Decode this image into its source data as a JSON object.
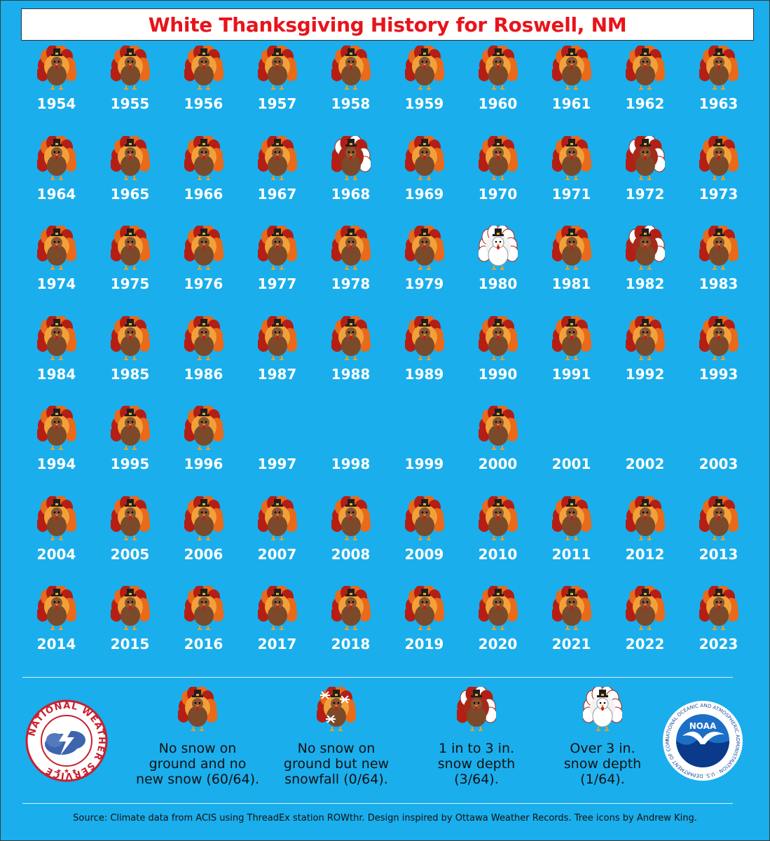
{
  "title": "White Thanksgiving History for Roswell, NM",
  "colors": {
    "background": "#1aaeec",
    "title_text": "#e8141b",
    "turkey_body": "#7a4a2a",
    "turkey_feather_orange": "#e86a1a",
    "turkey_feather_red": "#b51e14",
    "snow_white": "#ffffff"
  },
  "icons": {
    "none": "turkey-brown-icon",
    "new_snow": "turkey-snowflake-icon",
    "light_depth": "turkey-white-feathers-icon",
    "heavy_depth": "turkey-white-body-icon"
  },
  "rows": [
    [
      {
        "year": "1954",
        "c": "none"
      },
      {
        "year": "1955",
        "c": "none"
      },
      {
        "year": "1956",
        "c": "none"
      },
      {
        "year": "1957",
        "c": "none"
      },
      {
        "year": "1958",
        "c": "none"
      },
      {
        "year": "1959",
        "c": "none"
      },
      {
        "year": "1960",
        "c": "none"
      },
      {
        "year": "1961",
        "c": "none"
      },
      {
        "year": "1962",
        "c": "none"
      },
      {
        "year": "1963",
        "c": "none"
      }
    ],
    [
      {
        "year": "1964",
        "c": "none"
      },
      {
        "year": "1965",
        "c": "none"
      },
      {
        "year": "1966",
        "c": "none"
      },
      {
        "year": "1967",
        "c": "none"
      },
      {
        "year": "1968",
        "c": "light_depth"
      },
      {
        "year": "1969",
        "c": "none"
      },
      {
        "year": "1970",
        "c": "none"
      },
      {
        "year": "1971",
        "c": "none"
      },
      {
        "year": "1972",
        "c": "light_depth"
      },
      {
        "year": "1973",
        "c": "none"
      }
    ],
    [
      {
        "year": "1974",
        "c": "none"
      },
      {
        "year": "1975",
        "c": "none"
      },
      {
        "year": "1976",
        "c": "none"
      },
      {
        "year": "1977",
        "c": "none"
      },
      {
        "year": "1978",
        "c": "none"
      },
      {
        "year": "1979",
        "c": "none"
      },
      {
        "year": "1980",
        "c": "heavy_depth"
      },
      {
        "year": "1981",
        "c": "none"
      },
      {
        "year": "1982",
        "c": "light_depth"
      },
      {
        "year": "1983",
        "c": "none"
      }
    ],
    [
      {
        "year": "1984",
        "c": "none"
      },
      {
        "year": "1985",
        "c": "none"
      },
      {
        "year": "1986",
        "c": "none"
      },
      {
        "year": "1987",
        "c": "none"
      },
      {
        "year": "1988",
        "c": "none"
      },
      {
        "year": "1989",
        "c": "none"
      },
      {
        "year": "1990",
        "c": "none"
      },
      {
        "year": "1991",
        "c": "none"
      },
      {
        "year": "1992",
        "c": "none"
      },
      {
        "year": "1993",
        "c": "none"
      }
    ],
    [
      {
        "year": "1994",
        "c": "none"
      },
      {
        "year": "1995",
        "c": "none"
      },
      {
        "year": "1996",
        "c": "none"
      },
      {
        "year": "1997",
        "c": "missing"
      },
      {
        "year": "1998",
        "c": "missing"
      },
      {
        "year": "1999",
        "c": "missing"
      },
      {
        "year": "2000",
        "c": "none"
      },
      {
        "year": "2001",
        "c": "missing"
      },
      {
        "year": "2002",
        "c": "missing"
      },
      {
        "year": "2003",
        "c": "missing"
      }
    ],
    [
      {
        "year": "2004",
        "c": "none"
      },
      {
        "year": "2005",
        "c": "none"
      },
      {
        "year": "2006",
        "c": "none"
      },
      {
        "year": "2007",
        "c": "none"
      },
      {
        "year": "2008",
        "c": "none"
      },
      {
        "year": "2009",
        "c": "none"
      },
      {
        "year": "2010",
        "c": "none"
      },
      {
        "year": "2011",
        "c": "none"
      },
      {
        "year": "2012",
        "c": "none"
      },
      {
        "year": "2013",
        "c": "none"
      }
    ],
    [
      {
        "year": "2014",
        "c": "none"
      },
      {
        "year": "2015",
        "c": "none"
      },
      {
        "year": "2016",
        "c": "none"
      },
      {
        "year": "2017",
        "c": "none"
      },
      {
        "year": "2018",
        "c": "none"
      },
      {
        "year": "2019",
        "c": "none"
      },
      {
        "year": "2020",
        "c": "none"
      },
      {
        "year": "2021",
        "c": "none"
      },
      {
        "year": "2022",
        "c": "none"
      },
      {
        "year": "2023",
        "c": "none"
      }
    ]
  ],
  "legend": {
    "none": {
      "icon": "turkey-brown-icon",
      "lines": [
        "No snow on",
        "ground and no",
        "new snow (60/64)."
      ]
    },
    "new_snow": {
      "icon": "turkey-snowflake-icon",
      "lines": [
        "No snow on",
        "ground but new",
        "snowfall (0/64)."
      ]
    },
    "light_depth": {
      "icon": "turkey-white-feathers-icon",
      "lines": [
        "1 in to 3 in.",
        "snow depth",
        "(3/64)."
      ]
    },
    "heavy_depth": {
      "icon": "turkey-white-body-icon",
      "lines": [
        "Over 3 in.",
        "snow depth",
        "(1/64)."
      ]
    }
  },
  "logos": {
    "nws": {
      "icon": "nws-seal-icon",
      "text": "NATIONAL WEATHER SERVICE"
    },
    "noaa": {
      "icon": "noaa-seal-icon",
      "center": "NOAA",
      "ring": "NATIONAL OCEANIC AND ATMOSPHERIC ADMINISTRATION · U.S. DEPARTMENT OF COMMERCE"
    }
  },
  "source": "Source: Climate data from ACIS using ThreadEx station ROWthr. Design inspired by Ottawa Weather Records. Tree icons by Andrew King."
}
